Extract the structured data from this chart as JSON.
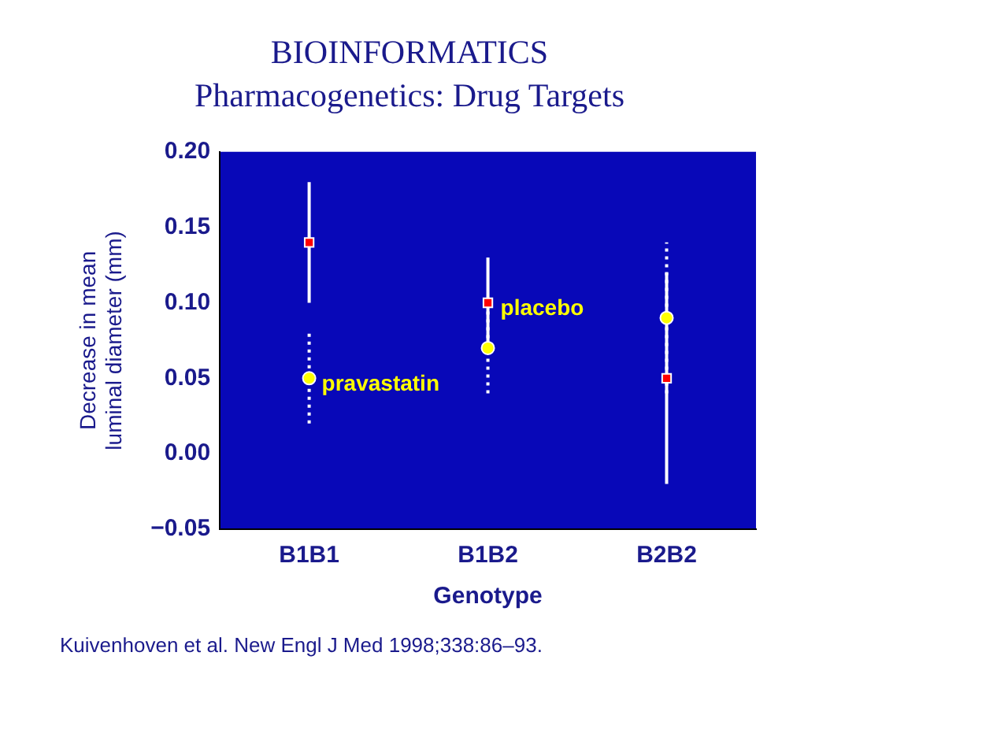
{
  "chart_data": {
    "type": "scatter",
    "title": "BIOINFORMATICS",
    "subtitle": "Pharmacogenetics: Drug Targets",
    "xlabel": "Genotype",
    "ylabel": "Decrease in mean\nluminal diameter (mm)",
    "categories": [
      "B1B1",
      "B1B2",
      "B2B2"
    ],
    "series": [
      {
        "color": "#ff0000",
        "values": [
          0.14,
          0.1,
          0.05
        ],
        "errors": [
          0.04,
          0.03,
          0.07
        ],
        "marker": "square",
        "line_style": "solid"
      },
      {
        "color": "#ffff00",
        "values": [
          0.05,
          0.07,
          0.09
        ],
        "errors": [
          0.03,
          0.03,
          0.05
        ],
        "marker": "circle",
        "line_style": "dotted"
      }
    ],
    "ylim": [
      -0.05,
      0.2
    ],
    "yticks": [
      {
        "value": -0.05,
        "label": "−0.05"
      },
      {
        "value": 0,
        "label": "0.00"
      },
      {
        "value": 0.05,
        "label": "0.05"
      },
      {
        "value": 0.1,
        "label": "0.10"
      },
      {
        "value": 0.15,
        "label": "0.15"
      },
      {
        "value": 0.2,
        "label": "0.20"
      }
    ],
    "grid": false,
    "legend": false,
    "annotations": [
      {
        "text": "placebo",
        "x": "B1B2",
        "y": 0.1
      },
      {
        "text": "pravastatin",
        "x": "B1B1",
        "y": 0.05
      },
      "Kuivenhoven et al. New Engl J Med 1998;338:86–93."
    ]
  }
}
